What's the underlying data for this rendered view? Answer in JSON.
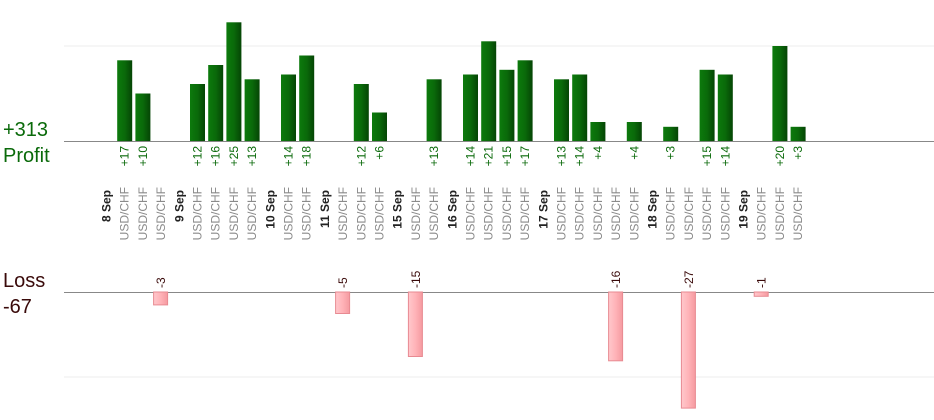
{
  "summary": {
    "profit_total": "+313",
    "profit_label": "Profit",
    "loss_label": "Loss",
    "loss_total": "-67"
  },
  "colors": {
    "profit_bar": "#0a6a0a",
    "loss_bar": "#ffb3b8",
    "profit_text": "#0a6a0a",
    "loss_text": "#3a0a0a"
  },
  "chart_data": {
    "type": "bar",
    "title": "",
    "grid": true,
    "profit_axis_range": [
      0,
      20
    ],
    "loss_axis_range": [
      -30,
      0
    ],
    "groups": [
      {
        "date": "8 Sep",
        "slots": [
          {
            "pair": "USD/CHF",
            "value": 17,
            "label": "+17"
          },
          {
            "pair": "USD/CHF",
            "value": 10,
            "label": "+10"
          },
          {
            "pair": "USD/CHF",
            "value": -3,
            "label": "-3"
          }
        ]
      },
      {
        "date": "9 Sep",
        "slots": [
          {
            "pair": "USD/CHF",
            "value": 12,
            "label": "+12"
          },
          {
            "pair": "USD/CHF",
            "value": 16,
            "label": "+16"
          },
          {
            "pair": "USD/CHF",
            "value": 25,
            "label": "+25"
          },
          {
            "pair": "USD/CHF",
            "value": 13,
            "label": "+13"
          }
        ]
      },
      {
        "date": "10 Sep",
        "slots": [
          {
            "pair": "USD/CHF",
            "value": 14,
            "label": "+14"
          },
          {
            "pair": "USD/CHF",
            "value": 18,
            "label": "+18"
          }
        ]
      },
      {
        "date": "11 Sep",
        "slots": [
          {
            "pair": "USD/CHF",
            "value": -5,
            "label": "-5"
          },
          {
            "pair": "USD/CHF",
            "value": 12,
            "label": "+12"
          },
          {
            "pair": "USD/CHF",
            "value": 6,
            "label": "+6"
          }
        ]
      },
      {
        "date": "15 Sep",
        "slots": [
          {
            "pair": "USD/CHF",
            "value": -15,
            "label": "-15"
          },
          {
            "pair": "USD/CHF",
            "value": 13,
            "label": "+13"
          }
        ]
      },
      {
        "date": "16 Sep",
        "slots": [
          {
            "pair": "USD/CHF",
            "value": 14,
            "label": "+14"
          },
          {
            "pair": "USD/CHF",
            "value": 21,
            "label": "+21"
          },
          {
            "pair": "USD/CHF",
            "value": 15,
            "label": "+15"
          },
          {
            "pair": "USD/CHF",
            "value": 17,
            "label": "+17"
          }
        ]
      },
      {
        "date": "17 Sep",
        "slots": [
          {
            "pair": "USD/CHF",
            "value": 13,
            "label": "+13"
          },
          {
            "pair": "USD/CHF",
            "value": 14,
            "label": "+14"
          },
          {
            "pair": "USD/CHF",
            "value": 4,
            "label": "+4"
          },
          {
            "pair": "USD/CHF",
            "value": -16,
            "label": "-16"
          },
          {
            "pair": "USD/CHF",
            "value": 4,
            "label": "+4"
          }
        ]
      },
      {
        "date": "18 Sep",
        "slots": [
          {
            "pair": "USD/CHF",
            "value": 3,
            "label": "+3"
          },
          {
            "pair": "USD/CHF",
            "value": -27,
            "label": "-27"
          },
          {
            "pair": "USD/CHF",
            "value": 15,
            "label": "+15"
          },
          {
            "pair": "USD/CHF",
            "value": 14,
            "label": "+14"
          }
        ]
      },
      {
        "date": "19 Sep",
        "slots": [
          {
            "pair": "USD/CHF",
            "value": -1,
            "label": "-1"
          },
          {
            "pair": "USD/CHF",
            "value": 20,
            "label": "+20"
          },
          {
            "pair": "USD/CHF",
            "value": 3,
            "label": "+3"
          }
        ]
      }
    ]
  }
}
